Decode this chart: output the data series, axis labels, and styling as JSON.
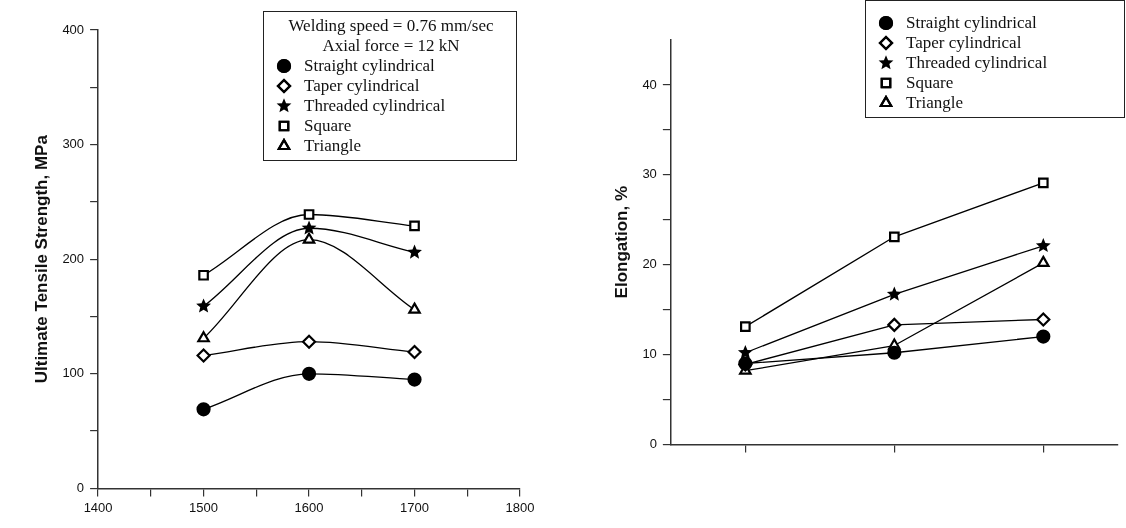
{
  "chart_data": [
    {
      "type": "line",
      "ylabel": "Ultimate Tensile Strength, MPa",
      "legend_title": "Welding speed = 0.76 mm/sec\nAxial force = 12 kN",
      "legend": "top right",
      "x": [
        1500,
        1600,
        1700
      ],
      "xlim": [
        1400,
        1800
      ],
      "xticks": [
        1400,
        {
          "value": 1450,
          "label": null
        },
        1500,
        {
          "value": 1550,
          "label": null
        },
        1600,
        {
          "value": 1650,
          "label": null
        },
        1700,
        {
          "value": 1750,
          "label": null
        },
        1800
      ],
      "ylim": [
        0,
        400
      ],
      "yticks": [
        0,
        {
          "value": 50,
          "label": null
        },
        100,
        {
          "value": 150,
          "label": null
        },
        200,
        {
          "value": 250,
          "label": null
        },
        300,
        {
          "value": 350,
          "label": null
        },
        400
      ],
      "series": [
        {
          "name": "Straight cylindrical",
          "color": "#000000",
          "marker": "circle",
          "values": [
            69,
            100,
            95
          ]
        },
        {
          "name": "Taper cylindrical",
          "color": "#000000",
          "marker": "diamond",
          "values": [
            116,
            128,
            119
          ]
        },
        {
          "name": "Threaded cylindrical",
          "color": "#000000",
          "marker": "star",
          "values": [
            159,
            227,
            206
          ]
        },
        {
          "name": "Square",
          "color": "#000000",
          "marker": "square",
          "values": [
            186,
            239,
            229
          ]
        },
        {
          "name": "Triangle",
          "color": "#000000",
          "marker": "triangle",
          "values": [
            131,
            217,
            156
          ]
        }
      ]
    },
    {
      "type": "line",
      "ylabel": "Elongation, %",
      "legend": "top right",
      "tick_labels": "y",
      "categories": [
        null,
        null,
        null
      ],
      "ylim": [
        0,
        45
      ],
      "yticks": [
        0,
        {
          "value": 5,
          "label": null
        },
        10,
        {
          "value": 15,
          "label": null
        },
        20,
        {
          "value": 25,
          "label": null
        },
        30,
        {
          "value": 35,
          "label": null
        },
        40
      ],
      "series": [
        {
          "name": "Straight cylindrical",
          "color": "#000000",
          "marker": "circle",
          "values": [
            9.0,
            10.2,
            12.0
          ]
        },
        {
          "name": "Taper cylindrical",
          "color": "#000000",
          "marker": "diamond",
          "values": [
            8.9,
            13.3,
            13.9
          ]
        },
        {
          "name": "Threaded cylindrical",
          "color": "#000000",
          "marker": "star",
          "values": [
            10.2,
            16.7,
            22.1
          ]
        },
        {
          "name": "Square",
          "color": "#000000",
          "marker": "square",
          "values": [
            13.1,
            23.1,
            29.1
          ]
        },
        {
          "name": "Triangle",
          "color": "#000000",
          "marker": "triangle",
          "values": [
            8.2,
            11.0,
            20.2
          ]
        }
      ]
    }
  ]
}
